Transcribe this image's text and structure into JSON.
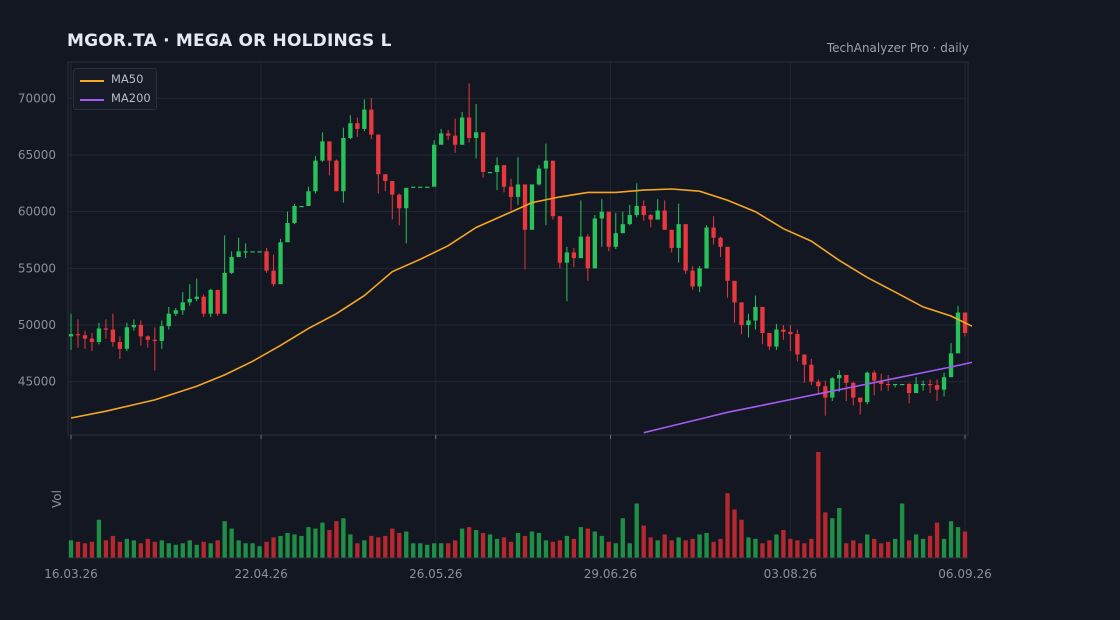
{
  "header": {
    "title": "MGOR.TA  ·  MEGA OR HOLDINGS L",
    "source": "TechAnalyzer Pro · daily"
  },
  "legend": [
    {
      "label": "MA50",
      "color": "#f5a623"
    },
    {
      "label": "MA200",
      "color": "#a35cf0"
    }
  ],
  "colors": {
    "up": "#26c35a",
    "down": "#e8383d",
    "background": "#131722",
    "grid": "#222834"
  },
  "chart_data": {
    "type": "candlestick",
    "price_axis": {
      "ticks": [
        45000,
        50000,
        55000,
        60000,
        65000,
        70000
      ],
      "range": [
        40300,
        73200
      ]
    },
    "volume_axis": {
      "label": "Vol"
    },
    "x_axis": {
      "tick_labels": [
        "16.03.26",
        "22.04.26",
        "26.05.26",
        "29.06.26",
        "03.08.26",
        "06.09.26"
      ],
      "start": "2026-03-16",
      "end": "2026-09-06"
    },
    "candles": [
      [
        49000,
        49200,
        51000,
        47800,
        1.2
      ],
      [
        49200,
        49100,
        50500,
        48000,
        1.1
      ],
      [
        49100,
        48800,
        49500,
        47900,
        1.0
      ],
      [
        48800,
        48500,
        49300,
        47700,
        1.1
      ],
      [
        48500,
        49700,
        50200,
        48300,
        2.6
      ],
      [
        49700,
        49600,
        50500,
        48800,
        1.2
      ],
      [
        49600,
        48500,
        51000,
        48100,
        1.5
      ],
      [
        48500,
        47900,
        49000,
        47000,
        1.1
      ],
      [
        47900,
        49800,
        50200,
        47700,
        1.3
      ],
      [
        49800,
        50000,
        50500,
        49500,
        1.2
      ],
      [
        50000,
        49000,
        50400,
        48200,
        1.0
      ],
      [
        49000,
        48700,
        49100,
        48000,
        1.3
      ],
      [
        48700,
        48600,
        49800,
        46000,
        1.1
      ],
      [
        48600,
        49900,
        50400,
        47900,
        1.2
      ],
      [
        49900,
        51000,
        51600,
        49600,
        1.0
      ],
      [
        51000,
        51300,
        51500,
        50800,
        0.9
      ],
      [
        51300,
        52000,
        52900,
        50900,
        1.0
      ],
      [
        52000,
        52300,
        53600,
        51700,
        1.2
      ],
      [
        52300,
        52500,
        54100,
        52100,
        0.9
      ],
      [
        52500,
        51000,
        52700,
        50700,
        1.1
      ],
      [
        51000,
        53100,
        53200,
        50700,
        1.0
      ],
      [
        53100,
        51000,
        53000,
        50800,
        1.2
      ],
      [
        51000,
        54600,
        57900,
        51200,
        2.5
      ],
      [
        54600,
        56000,
        56500,
        54500,
        2.0
      ],
      [
        56000,
        56500,
        57700,
        56400,
        1.2
      ],
      [
        56500,
        56500,
        57200,
        55900,
        1.0
      ],
      [
        56500,
        56500,
        56500,
        56500,
        1.0
      ],
      [
        56500,
        56500,
        56500,
        56500,
        0.8
      ],
      [
        56500,
        54800,
        56800,
        54600,
        1.1
      ],
      [
        54800,
        53600,
        56200,
        53400,
        1.4
      ],
      [
        53600,
        57300,
        57600,
        54800,
        1.5
      ],
      [
        57300,
        59000,
        60000,
        57500,
        1.7
      ],
      [
        59000,
        60500,
        60700,
        58900,
        1.6
      ],
      [
        60500,
        60500,
        60500,
        60500,
        1.5
      ],
      [
        60500,
        61800,
        62200,
        60800,
        2.1
      ],
      [
        61800,
        64500,
        64900,
        61600,
        2.0
      ],
      [
        64500,
        66200,
        67000,
        64400,
        2.4
      ],
      [
        66200,
        64500,
        66200,
        63200,
        1.9
      ],
      [
        64500,
        61800,
        64600,
        61800,
        2.5
      ],
      [
        61800,
        66500,
        67400,
        60800,
        2.7
      ],
      [
        66500,
        67800,
        68500,
        66400,
        1.6
      ],
      [
        67800,
        67300,
        68300,
        66600,
        1.0
      ],
      [
        67300,
        69000,
        69900,
        67100,
        1.2
      ],
      [
        69000,
        66800,
        70000,
        66400,
        1.5
      ],
      [
        66800,
        63300,
        65900,
        61600,
        1.4
      ],
      [
        63300,
        62700,
        62900,
        61800,
        1.5
      ],
      [
        62700,
        61500,
        62100,
        59300,
        2.0
      ],
      [
        61500,
        60300,
        61600,
        58800,
        1.7
      ],
      [
        60300,
        62100,
        62100,
        57200,
        1.8
      ],
      [
        62100,
        62200,
        62200,
        62200,
        1.0
      ],
      [
        62200,
        62200,
        62200,
        62200,
        1.0
      ],
      [
        62200,
        62200,
        62200,
        62200,
        0.9
      ],
      [
        62200,
        65900,
        66300,
        65200,
        1.0
      ],
      [
        65900,
        66900,
        67300,
        66200,
        1.0
      ],
      [
        66900,
        66700,
        67200,
        66300,
        1.0
      ],
      [
        66700,
        65900,
        68200,
        65200,
        1.2
      ],
      [
        65900,
        68300,
        68800,
        65900,
        2.0
      ],
      [
        68300,
        66500,
        71300,
        66100,
        2.1
      ],
      [
        66500,
        67000,
        69500,
        64700,
        1.9
      ],
      [
        67000,
        63500,
        64600,
        63000,
        1.7
      ],
      [
        63500,
        63500,
        63500,
        63500,
        1.6
      ],
      [
        63500,
        64100,
        64800,
        61900,
        1.3
      ],
      [
        64100,
        62200,
        63300,
        61700,
        1.4
      ],
      [
        62200,
        61300,
        62900,
        60100,
        1.1
      ],
      [
        61300,
        62400,
        64800,
        60600,
        1.7
      ],
      [
        62400,
        58400,
        59500,
        54900,
        1.5
      ],
      [
        58400,
        62400,
        62400,
        58600,
        1.8
      ],
      [
        62400,
        63800,
        64100,
        62300,
        1.7
      ],
      [
        63800,
        64500,
        66000,
        58800,
        1.2
      ],
      [
        64500,
        59600,
        60600,
        59300,
        1.1
      ],
      [
        59600,
        55500,
        59600,
        55000,
        1.2
      ],
      [
        55500,
        56400,
        56900,
        52100,
        1.5
      ],
      [
        56400,
        55900,
        56800,
        55100,
        1.3
      ],
      [
        55900,
        57800,
        61000,
        57600,
        2.1
      ],
      [
        57800,
        55000,
        58000,
        53900,
        2.0
      ],
      [
        55000,
        59400,
        59700,
        57100,
        1.8
      ],
      [
        59400,
        60000,
        61100,
        56900,
        1.5
      ],
      [
        60000,
        56900,
        58000,
        56500,
        1.1
      ],
      [
        56900,
        58100,
        59900,
        56700,
        1.0
      ],
      [
        58100,
        58900,
        60000,
        58100,
        2.7
      ],
      [
        58900,
        59700,
        60600,
        58800,
        1.0
      ],
      [
        59700,
        60500,
        62500,
        59500,
        3.7
      ],
      [
        60500,
        59700,
        61000,
        59200,
        2.2
      ],
      [
        59700,
        59300,
        59800,
        58600,
        1.4
      ],
      [
        59300,
        60100,
        61100,
        59400,
        1.2
      ],
      [
        60100,
        58400,
        61000,
        58400,
        1.6
      ],
      [
        58400,
        56800,
        57600,
        56400,
        1.2
      ],
      [
        56800,
        58900,
        60700,
        55500,
        1.4
      ],
      [
        58900,
        54800,
        56300,
        54500,
        1.2
      ],
      [
        54800,
        53400,
        55200,
        53100,
        1.3
      ],
      [
        53400,
        55000,
        55200,
        52900,
        1.6
      ],
      [
        55000,
        58600,
        58800,
        55700,
        1.7
      ],
      [
        58600,
        57700,
        59600,
        57100,
        1.1
      ],
      [
        57700,
        56900,
        57800,
        56000,
        1.3
      ],
      [
        56900,
        53900,
        54400,
        52400,
        4.4
      ],
      [
        53900,
        52000,
        53200,
        50200,
        3.3
      ],
      [
        52000,
        50000,
        51200,
        49200,
        2.6
      ],
      [
        50000,
        50400,
        51000,
        48900,
        1.4
      ],
      [
        50400,
        51600,
        52600,
        49600,
        1.3
      ],
      [
        51600,
        49300,
        50200,
        48300,
        1.0
      ],
      [
        49300,
        48100,
        48300,
        47800,
        1.2
      ],
      [
        48100,
        49600,
        50100,
        47800,
        1.6
      ],
      [
        49600,
        49400,
        50000,
        48700,
        1.9
      ],
      [
        49400,
        49200,
        50000,
        47700,
        1.3
      ],
      [
        49200,
        47400,
        49600,
        46800,
        1.2
      ],
      [
        47400,
        46500,
        46700,
        44900,
        1.0
      ],
      [
        46500,
        45000,
        47000,
        44700,
        1.3
      ],
      [
        45000,
        44600,
        45200,
        43900,
        7.2
      ],
      [
        44600,
        43600,
        45100,
        42000,
        3.1
      ],
      [
        43600,
        45300,
        45400,
        43300,
        2.7
      ],
      [
        45300,
        45600,
        46000,
        44100,
        3.4
      ],
      [
        45600,
        44900,
        45100,
        43300,
        1.0
      ],
      [
        44900,
        43600,
        45000,
        42900,
        1.2
      ],
      [
        43600,
        43200,
        43300,
        42100,
        1.0
      ],
      [
        43200,
        45800,
        45900,
        43000,
        1.6
      ],
      [
        45800,
        45100,
        46000,
        43800,
        1.3
      ],
      [
        45100,
        44800,
        45700,
        44200,
        1.0
      ],
      [
        44800,
        44700,
        45600,
        44200,
        1.1
      ],
      [
        44700,
        44800,
        44800,
        44500,
        1.3
      ],
      [
        44800,
        44800,
        44800,
        44800,
        3.7
      ],
      [
        44800,
        44000,
        44900,
        43100,
        1.2
      ],
      [
        44000,
        44800,
        45400,
        44500,
        1.6
      ],
      [
        44800,
        44800,
        45100,
        44200,
        1.3
      ],
      [
        44800,
        44700,
        45200,
        44000,
        1.5
      ],
      [
        44700,
        44300,
        45200,
        43300,
        2.4
      ],
      [
        44300,
        45400,
        45800,
        43700,
        1.3
      ],
      [
        45400,
        47500,
        48400,
        46500,
        2.5
      ],
      [
        47500,
        51100,
        51700,
        48300,
        2.1
      ],
      [
        51100,
        49300,
        50400,
        49000,
        1.8
      ]
    ],
    "ma50": [
      [
        0,
        41800
      ],
      [
        5,
        42400
      ],
      [
        12,
        43400
      ],
      [
        18,
        44600
      ],
      [
        22,
        45600
      ],
      [
        26,
        46800
      ],
      [
        30,
        48200
      ],
      [
        34,
        49700
      ],
      [
        38,
        51000
      ],
      [
        42,
        52600
      ],
      [
        46,
        54700
      ],
      [
        50,
        55800
      ],
      [
        54,
        57000
      ],
      [
        58,
        58600
      ],
      [
        62,
        59700
      ],
      [
        66,
        60800
      ],
      [
        70,
        61300
      ],
      [
        74,
        61700
      ],
      [
        78,
        61700
      ],
      [
        82,
        61900
      ],
      [
        86,
        62000
      ],
      [
        90,
        61800
      ],
      [
        94,
        61000
      ],
      [
        98,
        60000
      ],
      [
        102,
        58500
      ],
      [
        106,
        57400
      ],
      [
        110,
        55700
      ],
      [
        114,
        54200
      ],
      [
        118,
        52900
      ],
      [
        122,
        51600
      ],
      [
        126,
        50800
      ],
      [
        129,
        49900
      ]
    ],
    "ma200": [
      [
        82,
        40500
      ],
      [
        86,
        41100
      ],
      [
        90,
        41700
      ],
      [
        94,
        42300
      ],
      [
        98,
        42800
      ],
      [
        102,
        43300
      ],
      [
        106,
        43800
      ],
      [
        110,
        44300
      ],
      [
        114,
        44800
      ],
      [
        118,
        45300
      ],
      [
        122,
        45800
      ],
      [
        126,
        46300
      ],
      [
        129,
        46700
      ]
    ]
  }
}
